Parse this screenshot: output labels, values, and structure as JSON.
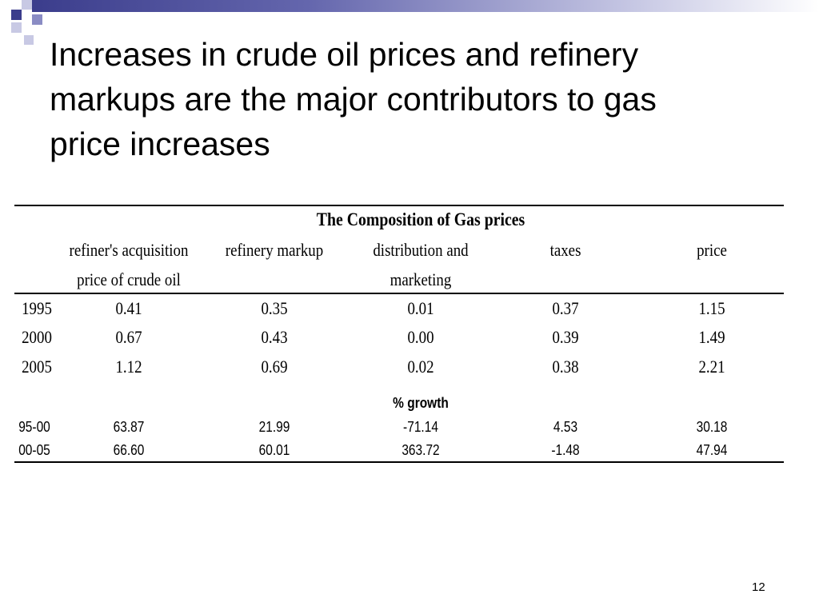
{
  "slide": {
    "title_lines": [
      "Increases in crude oil prices and refinery",
      "markups are the major contributors to gas",
      "price increases"
    ],
    "page_number": "12",
    "accent_colors": {
      "dark": "#3b3d8c",
      "mid": "#8a8cc4",
      "light": "#c8c9e4"
    }
  },
  "table": {
    "caption": "The Composition of Gas prices",
    "headers": [
      [
        "refiner's acquisition",
        "price of crude oil"
      ],
      [
        "refinery markup"
      ],
      [
        "distribution and",
        "marketing"
      ],
      [
        "taxes"
      ],
      [
        "price"
      ]
    ],
    "rows": [
      {
        "year": "1995",
        "values": [
          "0.41",
          "0.35",
          "0.01",
          "0.37",
          "1.15"
        ]
      },
      {
        "year": "2000",
        "values": [
          "0.67",
          "0.43",
          "0.00",
          "0.39",
          "1.49"
        ]
      },
      {
        "year": "2005",
        "values": [
          "1.12",
          "0.69",
          "0.02",
          "0.38",
          "2.21"
        ]
      }
    ],
    "growth_title": "% growth",
    "growth_rows": [
      {
        "period": "95-00",
        "values": [
          "63.87",
          "21.99",
          "-71.14",
          "4.53",
          "30.18"
        ]
      },
      {
        "period": "00-05",
        "values": [
          "66.60",
          "60.01",
          "363.72",
          "-1.48",
          "47.94"
        ]
      }
    ]
  }
}
